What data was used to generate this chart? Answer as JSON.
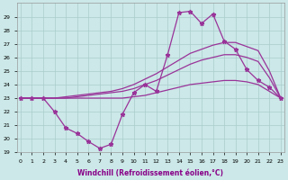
{
  "xlabel": "Windchill (Refroidissement éolien,°C)",
  "background_color": "#cce8e8",
  "grid_color": "#aacccc",
  "line_color": "#993399",
  "x_hours": [
    0,
    1,
    2,
    3,
    4,
    5,
    6,
    7,
    8,
    9,
    10,
    11,
    12,
    13,
    14,
    15,
    16,
    17,
    18,
    19,
    20,
    21,
    22,
    23
  ],
  "windchill": [
    23.0,
    23.0,
    23.0,
    22.0,
    20.8,
    20.4,
    19.8,
    19.3,
    19.6,
    21.8,
    23.4,
    24.0,
    23.5,
    26.2,
    29.3,
    29.4,
    28.5,
    29.2,
    27.2,
    26.6,
    25.1,
    24.3,
    23.8,
    23.0
  ],
  "line1": [
    23.0,
    23.0,
    23.0,
    23.0,
    23.1,
    23.2,
    23.3,
    23.4,
    23.5,
    23.7,
    24.0,
    24.4,
    24.8,
    25.3,
    25.8,
    26.3,
    26.6,
    26.9,
    27.1,
    27.1,
    26.8,
    26.5,
    25.0,
    23.0
  ],
  "line2": [
    23.0,
    23.0,
    23.0,
    23.0,
    23.0,
    23.1,
    23.2,
    23.3,
    23.4,
    23.5,
    23.7,
    24.0,
    24.3,
    24.7,
    25.1,
    25.5,
    25.8,
    26.0,
    26.2,
    26.2,
    26.0,
    25.7,
    24.5,
    23.0
  ],
  "line3": [
    23.0,
    23.0,
    23.0,
    23.0,
    23.0,
    23.0,
    23.0,
    23.0,
    23.0,
    23.0,
    23.1,
    23.2,
    23.4,
    23.6,
    23.8,
    24.0,
    24.1,
    24.2,
    24.3,
    24.3,
    24.2,
    24.0,
    23.5,
    23.0
  ],
  "ylim": [
    19,
    30
  ],
  "yticks": [
    19,
    20,
    21,
    22,
    23,
    24,
    25,
    26,
    27,
    28,
    29
  ],
  "xticks": [
    0,
    1,
    2,
    3,
    4,
    5,
    6,
    7,
    8,
    9,
    10,
    11,
    12,
    13,
    14,
    15,
    16,
    17,
    18,
    19,
    20,
    21,
    22,
    23
  ],
  "xlim": [
    -0.3,
    23.3
  ]
}
